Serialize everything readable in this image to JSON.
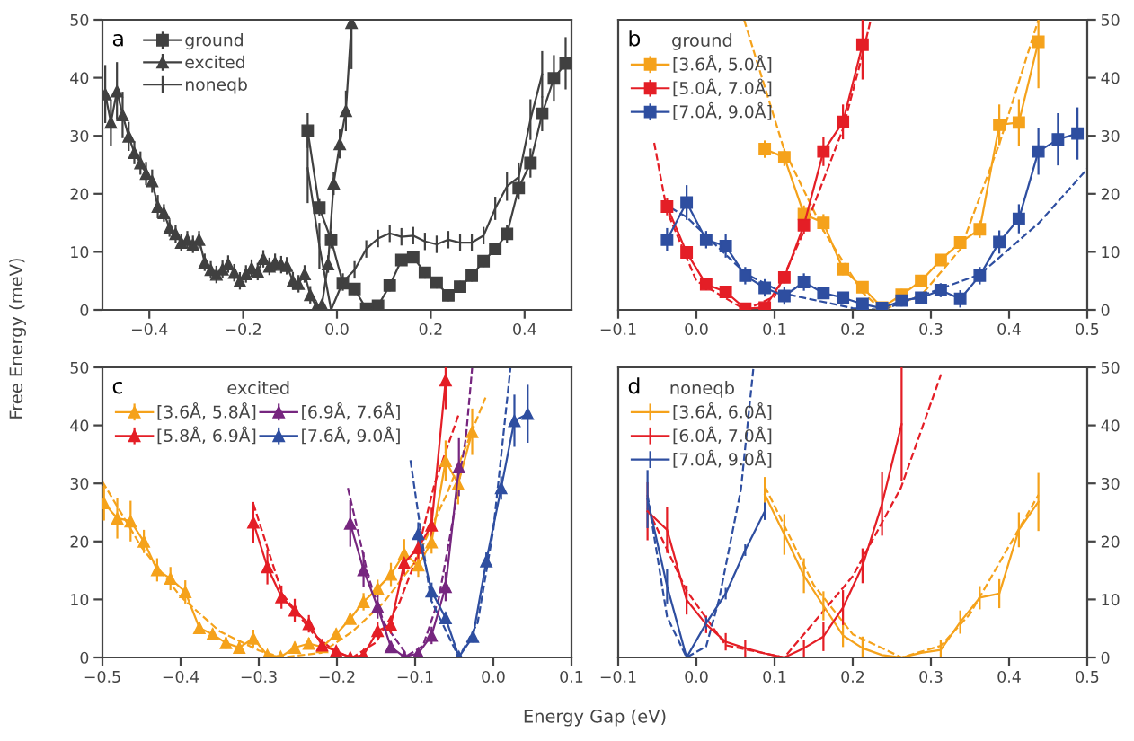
{
  "chart_data": [
    {
      "type": "line",
      "title": "a",
      "ylabel": "Free Energy (meV)",
      "xlim": [
        -0.5,
        0.5
      ],
      "ylim": [
        0,
        50
      ],
      "xticks": [
        {
          "value": -0.4,
          "label": "−0.4"
        },
        {
          "value": -0.2,
          "label": "−0.2"
        },
        {
          "value": 0,
          "label": "0.0"
        },
        {
          "value": 0.2,
          "label": "0.2"
        },
        {
          "value": 0.4,
          "label": "0.4"
        }
      ],
      "yticks": [
        0,
        10,
        20,
        30,
        40,
        50
      ],
      "legend": "top left",
      "grid": false,
      "series": [
        {
          "name": "ground",
          "color": "#404040",
          "marker": "square",
          "x": [
            -0.0625,
            -0.0375,
            -0.0125,
            0.0125,
            0.0375,
            0.0625,
            0.0875,
            0.1125,
            0.1375,
            0.1625,
            0.1875,
            0.2125,
            0.2375,
            0.2625,
            0.2875,
            0.3125,
            0.3375,
            0.3625,
            0.3875,
            0.4125,
            0.4375,
            0.4625,
            0.4875
          ],
          "values": [
            30.9,
            17.6,
            12.1,
            4.6,
            3.6,
            0.2,
            0.7,
            4.2,
            8.6,
            9.1,
            6.4,
            4.7,
            2.5,
            4.0,
            5.9,
            8.4,
            10.5,
            13.1,
            21.0,
            25.3,
            33.8,
            39.9,
            42.5
          ],
          "errors": [
            3,
            1.5,
            1.5,
            1,
            1,
            null,
            null,
            1,
            1,
            1,
            1,
            1,
            1,
            1,
            1,
            1,
            1,
            1.5,
            2,
            2.5,
            3,
            4,
            4.5
          ]
        },
        {
          "name": "excited",
          "color": "#404040",
          "marker": "triangle",
          "x": [
            -0.494,
            -0.482,
            -0.469,
            -0.457,
            -0.444,
            -0.432,
            -0.419,
            -0.407,
            -0.394,
            -0.382,
            -0.369,
            -0.357,
            -0.344,
            -0.332,
            -0.319,
            -0.307,
            -0.294,
            -0.282,
            -0.269,
            -0.257,
            -0.244,
            -0.232,
            -0.219,
            -0.207,
            -0.194,
            -0.182,
            -0.169,
            -0.157,
            -0.144,
            -0.132,
            -0.119,
            -0.107,
            -0.094,
            -0.082,
            -0.069,
            -0.057,
            -0.044,
            -0.032,
            -0.019,
            -0.007,
            0.006,
            0.019,
            0.031
          ],
          "values": [
            37.2,
            32.3,
            37.7,
            33.6,
            29.9,
            27.1,
            25.3,
            23.5,
            22.2,
            17.8,
            16.7,
            14.1,
            13.1,
            11.6,
            12.1,
            11.3,
            12.1,
            8.2,
            6.9,
            6.1,
            7.0,
            7.9,
            6.4,
            5.0,
            6.2,
            7.2,
            6.6,
            8.8,
            7.5,
            8.2,
            7.8,
            7.6,
            5.0,
            4.5,
            6.2,
            2.6,
            0.5,
            0.9,
            7.9,
            21.8,
            28.6,
            34.3,
            49.5
          ],
          "errors": [
            5,
            4,
            5,
            4,
            2.5,
            2,
            2,
            2,
            2,
            2,
            1.5,
            1.5,
            1.5,
            1.5,
            1.5,
            1.5,
            1.5,
            1.5,
            1.5,
            1.5,
            1.5,
            1.5,
            1.5,
            1.5,
            1.5,
            1.5,
            1.5,
            1.5,
            1.5,
            1.5,
            1.5,
            1.5,
            1.5,
            1.5,
            1.5,
            1.5,
            null,
            null,
            1.5,
            2,
            2.5,
            3.5,
            [
              41.5,
              50
            ]
          ]
        },
        {
          "name": "noneqb",
          "color": "#404040",
          "marker": "none",
          "x": [
            -0.0625,
            -0.0375,
            -0.0125,
            0.0125,
            0.0375,
            0.0625,
            0.0875,
            0.1125,
            0.1375,
            0.1625,
            0.1875,
            0.2125,
            0.2375,
            0.2625,
            0.2875,
            0.3125,
            0.3375,
            0.3625,
            0.3875,
            0.4125,
            0.4375
          ],
          "values": [
            24.4,
            11,
            0,
            4.8,
            6.9,
            10.5,
            12.3,
            13.2,
            12.6,
            12.8,
            11.8,
            11.3,
            12.1,
            11.6,
            11.6,
            12.8,
            17.5,
            21.3,
            22.9,
            32.8,
            40.6
          ],
          "errors": [
            6,
            4,
            null,
            1.5,
            1.5,
            1.5,
            1.5,
            1.5,
            1.5,
            1.5,
            1.5,
            1.5,
            1.5,
            1.5,
            1.5,
            1.5,
            2,
            2.5,
            2.5,
            3.5,
            4
          ]
        }
      ]
    },
    {
      "type": "line",
      "title": "b",
      "legend_title": "ground",
      "xlim": [
        -0.1,
        0.5
      ],
      "ylim": [
        0,
        50
      ],
      "xticks": [
        {
          "value": -0.1,
          "label": "−0.1"
        },
        {
          "value": 0,
          "label": "0.0"
        },
        0.1,
        0.2,
        0.3,
        0.4,
        0.5
      ],
      "yticks": [
        0,
        10,
        20,
        30,
        40,
        50
      ],
      "legend": "top left",
      "grid": false,
      "series": [
        {
          "name": "[3.6Å, 5.0Å]",
          "color": "#f5a21b",
          "marker": "square",
          "x": [
            0.0875,
            0.1125,
            0.1375,
            0.1625,
            0.1875,
            0.2125,
            0.2375,
            0.2625,
            0.2875,
            0.3125,
            0.3375,
            0.3625,
            0.3875,
            0.4125,
            0.4375
          ],
          "values": [
            27.7,
            26.3,
            16.5,
            15.0,
            7.0,
            3.9,
            0.4,
            2.6,
            5.0,
            8.6,
            11.6,
            13.9,
            31.9,
            32.3,
            46.2
          ],
          "errors": [
            1.5,
            1.5,
            1.5,
            1.5,
            1,
            1,
            null,
            1,
            1,
            1,
            1,
            1.5,
            3.5,
            4,
            [
              38.2,
              50
            ]
          ]
        },
        {
          "name": "[5.0Å, 7.0Å]",
          "color": "#e41e26",
          "marker": "square",
          "x": [
            -0.0375,
            -0.0125,
            0.0125,
            0.0375,
            0.0625,
            0.0875,
            0.1125,
            0.1375,
            0.1625,
            0.1875,
            0.2125
          ],
          "values": [
            17.8,
            9.9,
            4.4,
            3.1,
            0.2,
            0.4,
            5.6,
            14.6,
            27.3,
            32.4,
            45.7
          ],
          "errors": [
            1.5,
            1,
            1,
            1,
            null,
            null,
            1,
            1.5,
            2.5,
            3,
            [
              39.7,
              50
            ]
          ]
        },
        {
          "name": "[7.0Å, 9.0Å]",
          "color": "#2e4ea0",
          "marker": "square",
          "x": [
            -0.0375,
            -0.0125,
            0.0125,
            0.0375,
            0.0625,
            0.0875,
            0.1125,
            0.1375,
            0.1625,
            0.1875,
            0.2125,
            0.2375,
            0.2625,
            0.2875,
            0.3125,
            0.3375,
            0.3625,
            0.3875,
            0.4125,
            0.4375,
            0.4625,
            0.4875
          ],
          "values": [
            12.1,
            18.5,
            12.1,
            11.0,
            5.9,
            3.8,
            2.4,
            4.8,
            2.9,
            2.1,
            1.0,
            0.3,
            1.6,
            2.1,
            3.4,
            1.9,
            5.9,
            11.7,
            15.7,
            27.3,
            29.4,
            30.4
          ],
          "errors": [
            2,
            3,
            1.5,
            2,
            1.5,
            1.5,
            1.5,
            1.5,
            1,
            1,
            1,
            null,
            1,
            1,
            1.2,
            1.5,
            1.5,
            2,
            2.5,
            4,
            4.5,
            4.5
          ]
        },
        {
          "color": "#f5a21b",
          "line_style": "dashed",
          "marker": "none",
          "x": [
            0.061,
            0.1125,
            0.162,
            0.2125,
            0.2375,
            0.2875,
            0.338,
            0.388,
            0.4375
          ],
          "values": [
            50,
            27.5,
            13.8,
            3,
            0,
            2.5,
            10.5,
            28.8,
            50
          ]
        },
        {
          "color": "#e41e26",
          "line_style": "dashed",
          "marker": "none",
          "x": [
            -0.054,
            -0.0375,
            0.0,
            0.0625,
            0.1,
            0.137,
            0.187,
            0.2125,
            0.223
          ],
          "values": [
            28.8,
            17,
            5,
            0,
            2.3,
            13.4,
            31,
            44,
            50
          ]
        },
        {
          "color": "#2e4ea0",
          "line_style": "dashed",
          "marker": "none",
          "x": [
            -0.033,
            -0.0125,
            0.0625,
            0.1125,
            0.2,
            0.2375,
            0.3625,
            0.4375,
            0.5
          ],
          "values": [
            17.6,
            16.0,
            6.3,
            2.8,
            0.3,
            0,
            6.1,
            14.9,
            24.3
          ]
        }
      ]
    },
    {
      "type": "line",
      "title": "c",
      "legend_title": "excited",
      "xlabel": "Energy Gap (eV)",
      "xlim": [
        -0.5,
        0.1
      ],
      "ylim": [
        0,
        50
      ],
      "xticks": [
        {
          "value": -0.5,
          "label": "−0.5"
        },
        {
          "value": -0.4,
          "label": "−0.4"
        },
        {
          "value": -0.3,
          "label": "−0.3"
        },
        {
          "value": -0.2,
          "label": "−0.2"
        },
        {
          "value": -0.1,
          "label": "−0.1"
        },
        {
          "value": 0,
          "label": "0.0"
        },
        0.1
      ],
      "yticks": [
        0,
        10,
        20,
        30,
        40,
        50
      ],
      "legend": "top left",
      "grid": false,
      "series": [
        {
          "name": "[3.6Å, 5.8Å]",
          "color": "#f5a21b",
          "marker": "triangle",
          "x": [
            -0.498,
            -0.481,
            -0.464,
            -0.447,
            -0.43,
            -0.413,
            -0.394,
            -0.376,
            -0.359,
            -0.342,
            -0.325,
            -0.307,
            -0.289,
            -0.272,
            -0.254,
            -0.236,
            -0.219,
            -0.201,
            -0.183,
            -0.166,
            -0.148,
            -0.131,
            -0.114,
            -0.096,
            -0.079,
            -0.061,
            -0.045,
            -0.027
          ],
          "values": [
            26.6,
            24.0,
            23.5,
            20.0,
            15.1,
            13.6,
            11.3,
            5.1,
            4.0,
            2.5,
            1.7,
            3.3,
            0.4,
            0.1,
            1.7,
            2.4,
            1.8,
            4.0,
            6.7,
            9.6,
            11.9,
            14.3,
            17.9,
            15.9,
            19.9,
            33.9,
            29.9,
            38.9
          ],
          "errors": [
            3,
            3.5,
            3.5,
            2,
            2,
            2,
            2,
            1,
            1,
            1,
            1,
            1.5,
            null,
            null,
            1,
            1,
            1,
            1,
            1,
            1.5,
            1.5,
            2,
            2.5,
            2,
            2,
            3.5,
            3.5,
            4
          ]
        },
        {
          "name": "[5.8Å, 6.9Å]",
          "color": "#e41e26",
          "marker": "triangle",
          "x": [
            -0.307,
            -0.289,
            -0.271,
            -0.254,
            -0.236,
            -0.219,
            -0.201,
            -0.183,
            -0.166,
            -0.148,
            -0.131,
            -0.114,
            -0.096,
            -0.079,
            -0.061
          ],
          "values": [
            23.3,
            15.6,
            10.4,
            8.1,
            5.8,
            2.1,
            1.1,
            0,
            0.4,
            4.6,
            5.6,
            16.3,
            18.9,
            22.8,
            47.8
          ],
          "errors": [
            3.5,
            3,
            2,
            2,
            1.5,
            1,
            null,
            null,
            null,
            1.5,
            1.5,
            2,
            2,
            3,
            [
              42.8,
              50
            ]
          ]
        },
        {
          "name": "[6.9Å, 7.6Å]",
          "color": "#76267f",
          "marker": "triangle",
          "x": [
            -0.183,
            -0.166,
            -0.148,
            -0.131,
            -0.114,
            -0.096,
            -0.079,
            -0.061,
            -0.044
          ],
          "values": [
            23.1,
            15.1,
            8.7,
            1.8,
            0.1,
            0.7,
            3.8,
            12.2,
            32.8
          ],
          "errors": [
            4,
            3,
            2,
            1,
            null,
            null,
            1.5,
            2.5,
            5
          ]
        },
        {
          "name": "[7.6Å, 9.0Å]",
          "color": "#2e4ea0",
          "marker": "triangle",
          "x": [
            -0.096,
            -0.079,
            -0.061,
            -0.044,
            -0.026,
            -0.009,
            0.01,
            0.027,
            0.044
          ],
          "values": [
            21.3,
            11.4,
            6.8,
            0.1,
            3.6,
            16.6,
            29.2,
            40.8,
            42.0
          ],
          "errors": [
            2,
            1.5,
            1,
            null,
            1,
            1.5,
            2,
            4.5,
            5
          ]
        },
        {
          "color": "#f5a21b",
          "line_style": "dashed",
          "marker": "none",
          "x": [
            -0.5,
            -0.45,
            -0.4,
            -0.35,
            -0.3,
            -0.27,
            -0.22,
            -0.18,
            -0.14,
            -0.1,
            -0.06,
            -0.01
          ],
          "values": [
            30.3,
            19,
            10.5,
            4.5,
            1.2,
            0,
            0.8,
            4.5,
            9.5,
            16.5,
            28,
            44.8
          ]
        },
        {
          "color": "#e41e26",
          "line_style": "dashed",
          "marker": "none",
          "x": [
            -0.307,
            -0.27,
            -0.23,
            -0.2,
            -0.18,
            -0.15,
            -0.12,
            -0.1,
            -0.075,
            -0.044
          ],
          "values": [
            26.5,
            11,
            4,
            0.8,
            0,
            2.6,
            9.5,
            16.5,
            30,
            42
          ]
        },
        {
          "color": "#76267f",
          "line_style": "dashed",
          "marker": "none",
          "x": [
            -0.186,
            -0.16,
            -0.14,
            -0.11,
            -0.09,
            -0.07,
            -0.05,
            -0.035,
            -0.027
          ],
          "values": [
            29.2,
            14,
            6,
            0.3,
            2,
            10,
            25,
            38,
            50
          ]
        },
        {
          "color": "#2e4ea0",
          "line_style": "dashed",
          "marker": "none",
          "x": [
            -0.106,
            -0.08,
            -0.044,
            -0.02,
            0.0,
            0.022
          ],
          "values": [
            34,
            10,
            0,
            6,
            22,
            50
          ]
        }
      ]
    },
    {
      "type": "line",
      "title": "d",
      "legend_title": "noneqb",
      "xlim": [
        -0.1,
        0.5
      ],
      "ylim": [
        0,
        50
      ],
      "xticks": [
        {
          "value": -0.1,
          "label": "−0.1"
        },
        {
          "value": 0,
          "label": "0.0"
        },
        0.1,
        0.2,
        0.3,
        0.4,
        0.5
      ],
      "yticks": [
        0,
        10,
        20,
        30,
        40,
        50
      ],
      "legend": "top left",
      "grid": false,
      "series": [
        {
          "name": "[3.6Å, 6.0Å]",
          "color": "#f5a21b",
          "marker": "none",
          "x": [
            0.0875,
            0.1125,
            0.1375,
            0.1625,
            0.1875,
            0.2125,
            0.2375,
            0.2625,
            0.2875,
            0.3125,
            0.3375,
            0.3625,
            0.3875,
            0.4125,
            0.4375
          ],
          "values": [
            28.1,
            21.2,
            14.1,
            8.9,
            3.8,
            1.6,
            0.4,
            0,
            0.8,
            1.3,
            6.1,
            10.3,
            11.0,
            22.0,
            26.8
          ],
          "errors": [
            3,
            3.5,
            3,
            2.5,
            2,
            [
              0,
              3.6
            ],
            null,
            null,
            null,
            [
              0,
              3
            ],
            2,
            2,
            2.5,
            3,
            5
          ]
        },
        {
          "name": "[6.0Å, 7.0Å]",
          "color": "#e41e26",
          "marker": "none",
          "x": [
            -0.0625,
            -0.0375,
            -0.0125,
            0.0125,
            0.0375,
            0.0625,
            0.0875,
            0.1125,
            0.1375,
            0.1625,
            0.1875,
            0.2125,
            0.2375,
            0.2625
          ],
          "values": [
            25.2,
            22.0,
            9.9,
            5.7,
            2.7,
            1.6,
            0.7,
            0,
            1.6,
            3.6,
            8.6,
            15.8,
            26.5,
            40.2
          ],
          "errors": [
            5,
            4,
            2.5,
            1.5,
            1.5,
            1.5,
            null,
            null,
            1.5,
            2.5,
            3,
            3,
            5.5,
            9.8
          ]
        },
        {
          "name": "[7.0Å, 9.0Å]",
          "color": "#2e4ea0",
          "marker": "none",
          "x": [
            -0.0625,
            -0.0375,
            -0.0125,
            0.0125,
            0.0375,
            0.0625,
            0.0875
          ],
          "values": [
            27.3,
            12.3,
            0,
            5.9,
            11.0,
            18.5,
            25.2
          ],
          "errors": [
            5,
            3,
            null,
            1,
            1,
            1,
            1.5
          ]
        },
        {
          "color": "#f5a21b",
          "line_style": "dashed",
          "marker": "none",
          "x": [
            0.0875,
            0.15,
            0.2,
            0.2625,
            0.3125,
            0.35,
            0.4375
          ],
          "values": [
            29.5,
            12.5,
            4,
            0,
            2,
            7.5,
            28
          ]
        },
        {
          "color": "#e41e26",
          "line_style": "dashed",
          "marker": "none",
          "x": [
            -0.0625,
            -0.0125,
            0.0375,
            0.1125,
            0.2,
            0.2615,
            0.313
          ],
          "values": [
            25.7,
            11.5,
            2.1,
            0,
            14,
            29.2,
            48.8
          ]
        },
        {
          "color": "#2e4ea0",
          "line_style": "dashed",
          "marker": "none",
          "x": [
            -0.0625,
            -0.0375,
            -0.0125,
            0.0125,
            0.029,
            0.057,
            0.073
          ],
          "values": [
            28,
            7,
            0,
            1.9,
            10,
            29,
            50
          ]
        }
      ]
    }
  ]
}
